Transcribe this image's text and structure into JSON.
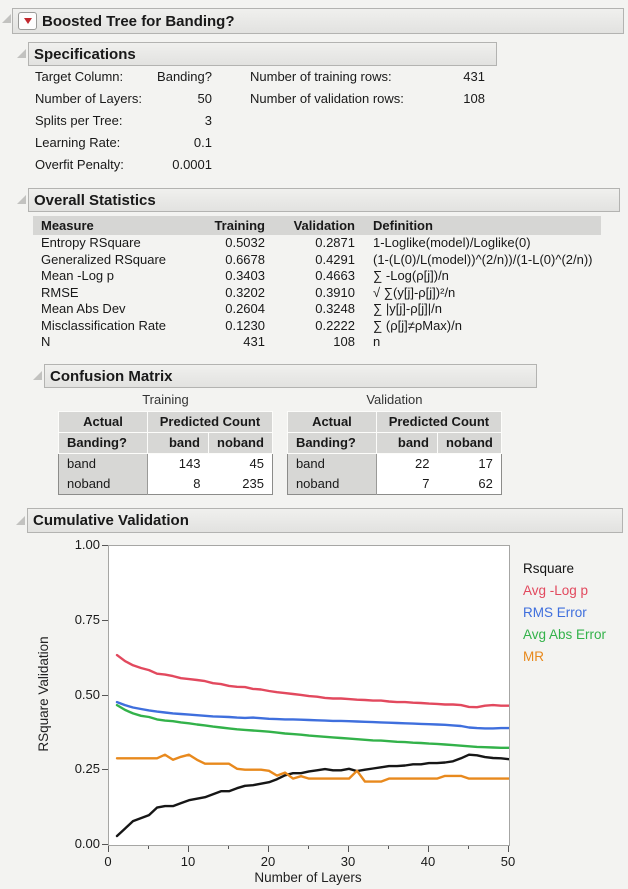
{
  "header": {
    "title": "Boosted Tree for Banding?"
  },
  "specifications": {
    "title": "Specifications",
    "left": [
      {
        "label": "Target Column:",
        "value": "Banding?"
      },
      {
        "label": "Number of Layers:",
        "value": "50"
      },
      {
        "label": "Splits per Tree:",
        "value": "3"
      },
      {
        "label": "Learning Rate:",
        "value": "0.1"
      },
      {
        "label": "Overfit Penalty:",
        "value": "0.0001"
      }
    ],
    "right": [
      {
        "label": "Number of training rows:",
        "value": "431"
      },
      {
        "label": "Number of validation rows:",
        "value": "108"
      }
    ]
  },
  "overall_statistics": {
    "title": "Overall Statistics",
    "columns": [
      "Measure",
      "Training",
      "Validation",
      "Definition"
    ],
    "rows": [
      [
        "Entropy RSquare",
        "0.5032",
        "0.2871",
        "1-Loglike(model)/Loglike(0)"
      ],
      [
        "Generalized RSquare",
        "0.6678",
        "0.4291",
        "(1-(L(0)/L(model))^(2/n))/(1-L(0)^(2/n))"
      ],
      [
        "Mean -Log p",
        "0.3403",
        "0.4663",
        "∑ -Log(ρ[j])/n"
      ],
      [
        "RMSE",
        "0.3202",
        "0.3910",
        "√ ∑(y[j]-ρ[j])²/n"
      ],
      [
        "Mean Abs Dev",
        "0.2604",
        "0.3248",
        "∑ |y[j]-ρ[j]|/n"
      ],
      [
        "Misclassification Rate",
        "0.1230",
        "0.2222",
        "∑ (ρ[j]≠ρMax)/n"
      ],
      [
        "N",
        "431",
        "108",
        "n"
      ]
    ]
  },
  "confusion_matrix": {
    "title": "Confusion Matrix",
    "tables": [
      {
        "caption": "Training",
        "actual_header": "Actual",
        "col_group": "Predicted Count",
        "response_header": "Banding?",
        "pred_labels": [
          "band",
          "noband"
        ],
        "rows": [
          {
            "label": "band",
            "values": [
              143,
              45
            ]
          },
          {
            "label": "noband",
            "values": [
              8,
              235
            ]
          }
        ]
      },
      {
        "caption": "Validation",
        "actual_header": "Actual",
        "col_group": "Predicted Count",
        "response_header": "Banding?",
        "pred_labels": [
          "band",
          "noband"
        ],
        "rows": [
          {
            "label": "band",
            "values": [
              22,
              17
            ]
          },
          {
            "label": "noband",
            "values": [
              7,
              62
            ]
          }
        ]
      }
    ]
  },
  "chart_data": {
    "type": "line",
    "title": "Cumulative Validation",
    "xlabel": "Number of Layers",
    "ylabel": "RSquare Validation",
    "xlim": [
      0,
      50
    ],
    "ylim": [
      0,
      1
    ],
    "grid": false,
    "legend_position": "right",
    "yticks": [
      "0.00",
      "0.25",
      "0.50",
      "0.75",
      "1.00"
    ],
    "xticks_major": [
      0,
      10,
      20,
      30,
      40,
      50
    ],
    "xticks_minor": [
      5,
      15,
      25,
      35,
      45
    ],
    "x": [
      1,
      2,
      3,
      4,
      5,
      6,
      7,
      8,
      9,
      10,
      11,
      12,
      13,
      14,
      15,
      16,
      17,
      18,
      19,
      20,
      21,
      22,
      23,
      24,
      25,
      26,
      27,
      28,
      29,
      30,
      31,
      32,
      33,
      34,
      35,
      36,
      37,
      38,
      39,
      40,
      41,
      42,
      43,
      44,
      45,
      46,
      47,
      48,
      49,
      50
    ],
    "series": [
      {
        "name": "Rsquare",
        "color": "#161616",
        "values": [
          0.03,
          0.055,
          0.08,
          0.09,
          0.1,
          0.125,
          0.13,
          0.13,
          0.14,
          0.15,
          0.155,
          0.16,
          0.17,
          0.18,
          0.18,
          0.19,
          0.198,
          0.2,
          0.205,
          0.21,
          0.22,
          0.233,
          0.24,
          0.24,
          0.246,
          0.25,
          0.254,
          0.25,
          0.25,
          0.255,
          0.247,
          0.252,
          0.256,
          0.26,
          0.264,
          0.264,
          0.266,
          0.27,
          0.27,
          0.274,
          0.274,
          0.276,
          0.28,
          0.29,
          0.302,
          0.3,
          0.294,
          0.291,
          0.29,
          0.287
        ]
      },
      {
        "name": "Avg -Log p",
        "color": "#e2495e",
        "values": [
          0.635,
          0.615,
          0.601,
          0.592,
          0.585,
          0.573,
          0.57,
          0.565,
          0.558,
          0.555,
          0.552,
          0.548,
          0.541,
          0.538,
          0.532,
          0.529,
          0.528,
          0.522,
          0.52,
          0.515,
          0.511,
          0.508,
          0.505,
          0.502,
          0.498,
          0.496,
          0.492,
          0.49,
          0.49,
          0.488,
          0.486,
          0.485,
          0.483,
          0.483,
          0.48,
          0.478,
          0.478,
          0.476,
          0.475,
          0.473,
          0.472,
          0.47,
          0.47,
          0.468,
          0.462,
          0.461,
          0.466,
          0.468,
          0.466,
          0.466
        ]
      },
      {
        "name": "RMS Error",
        "color": "#3f6fdd",
        "values": [
          0.478,
          0.468,
          0.46,
          0.455,
          0.45,
          0.446,
          0.443,
          0.44,
          0.438,
          0.436,
          0.434,
          0.432,
          0.43,
          0.429,
          0.428,
          0.426,
          0.425,
          0.426,
          0.424,
          0.422,
          0.421,
          0.42,
          0.42,
          0.419,
          0.418,
          0.417,
          0.416,
          0.415,
          0.415,
          0.414,
          0.413,
          0.412,
          0.411,
          0.41,
          0.409,
          0.408,
          0.407,
          0.406,
          0.405,
          0.404,
          0.403,
          0.402,
          0.4,
          0.398,
          0.393,
          0.391,
          0.39,
          0.39,
          0.391,
          0.391
        ]
      },
      {
        "name": "Avg Abs Error",
        "color": "#33b24a",
        "values": [
          0.468,
          0.452,
          0.44,
          0.432,
          0.428,
          0.42,
          0.416,
          0.414,
          0.41,
          0.407,
          0.403,
          0.4,
          0.396,
          0.393,
          0.39,
          0.387,
          0.385,
          0.383,
          0.381,
          0.379,
          0.376,
          0.373,
          0.371,
          0.369,
          0.366,
          0.364,
          0.362,
          0.36,
          0.358,
          0.356,
          0.354,
          0.352,
          0.35,
          0.349,
          0.347,
          0.345,
          0.344,
          0.342,
          0.341,
          0.339,
          0.338,
          0.336,
          0.334,
          0.332,
          0.33,
          0.328,
          0.327,
          0.326,
          0.325,
          0.325
        ]
      },
      {
        "name": "MR",
        "color": "#e8891d",
        "values": [
          0.29,
          0.29,
          0.29,
          0.29,
          0.29,
          0.29,
          0.302,
          0.285,
          0.295,
          0.302,
          0.285,
          0.272,
          0.272,
          0.272,
          0.272,
          0.255,
          0.252,
          0.252,
          0.252,
          0.248,
          0.232,
          0.242,
          0.222,
          0.23,
          0.222,
          0.222,
          0.222,
          0.222,
          0.222,
          0.222,
          0.248,
          0.212,
          0.212,
          0.212,
          0.222,
          0.222,
          0.222,
          0.222,
          0.222,
          0.222,
          0.222,
          0.231,
          0.231,
          0.231,
          0.222,
          0.222,
          0.222,
          0.222,
          0.222,
          0.222
        ]
      }
    ]
  }
}
